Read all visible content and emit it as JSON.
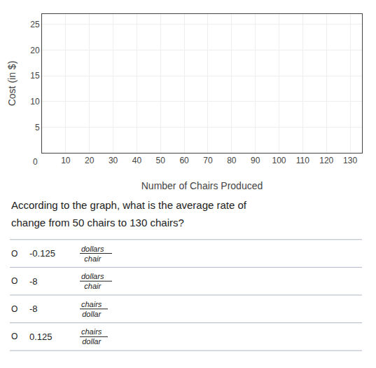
{
  "chart_data": {
    "type": "line",
    "xlabel": "Number of Chairs Produced",
    "ylabel": "Cost (in $)",
    "xlim": [
      0,
      135
    ],
    "ylim": [
      0,
      27
    ],
    "xticks": [
      10,
      20,
      30,
      40,
      50,
      60,
      70,
      80,
      90,
      100,
      110,
      120,
      130
    ],
    "yticks": [
      5,
      10,
      15,
      20,
      25
    ],
    "grid": true,
    "series": [],
    "origin_label": "0",
    "question": [
      "According to the graph, what is the average rate of",
      "change from 50 chairs to 130 chairs?"
    ],
    "choice_marker": "O",
    "choices": [
      {
        "main": "-0.125",
        "num": "dollars",
        "den": "chair"
      },
      {
        "main": "-8",
        "num": "dollars",
        "den": "chair"
      },
      {
        "main": "-8",
        "num": "chairs",
        "den": "dollar"
      },
      {
        "main": "0.125",
        "num": "chairs",
        "den": "dollar"
      }
    ]
  }
}
